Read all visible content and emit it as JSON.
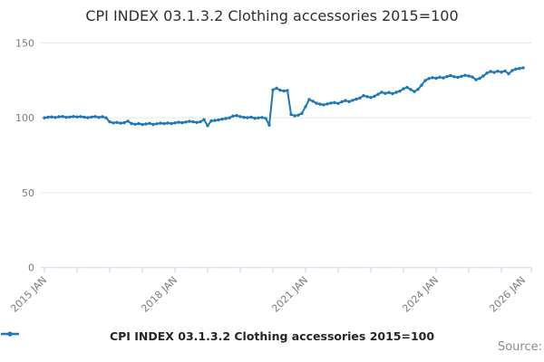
{
  "title": "CPI INDEX 03.1.3.2 Clothing accessories 2015=100",
  "legend": {
    "label": "CPI INDEX 03.1.3.2 Clothing accessories 2015=100"
  },
  "source_label": "Source:",
  "colors": {
    "line": "#1f77b4",
    "grid": "#e6e6e6",
    "axis": "#c9d6ea",
    "tick_label": "#7b7b7b"
  },
  "chart_data": {
    "type": "line",
    "title": "CPI INDEX 03.1.3.2 Clothing accessories 2015=100",
    "frequency": "monthly",
    "start": "2015 JAN",
    "end": "2026 JAN",
    "ylim": [
      0,
      155
    ],
    "yticks": [
      0,
      50,
      100,
      150
    ],
    "grid": "horizontal",
    "legend_position": "bottom",
    "xtick_labels": [
      "2015 JAN",
      "2018 JAN",
      "2021 JAN",
      "2024 JAN",
      "2026 JAN"
    ],
    "xtick_label_months": [
      0,
      36,
      72,
      108,
      132
    ],
    "minor_tick_interval_months": 9,
    "series": [
      {
        "name": "CPI INDEX 03.1.3.2 Clothing accessories 2015=100",
        "values": [
          100.0,
          100.4,
          100.6,
          100.2,
          100.7,
          100.9,
          100.3,
          100.5,
          100.9,
          100.6,
          100.8,
          100.4,
          100.1,
          100.5,
          100.8,
          100.3,
          100.7,
          100.0,
          97.3,
          96.6,
          96.9,
          96.4,
          96.7,
          97.8,
          96.2,
          95.7,
          96.1,
          95.5,
          95.9,
          96.3,
          95.6,
          96.0,
          96.4,
          96.1,
          96.5,
          96.2,
          96.6,
          97.0,
          96.7,
          97.2,
          97.6,
          97.3,
          96.9,
          97.4,
          98.8,
          94.7,
          97.9,
          98.2,
          98.6,
          99.1,
          99.5,
          100.0,
          101.2,
          101.5,
          100.8,
          100.3,
          100.1,
          100.4,
          99.7,
          99.9,
          100.2,
          99.6,
          95.1,
          118.6,
          119.8,
          118.4,
          117.9,
          118.3,
          102.2,
          101.3,
          101.8,
          103.0,
          107.4,
          112.2,
          111.1,
          109.7,
          109.1,
          108.7,
          109.3,
          109.8,
          110.2,
          109.6,
          110.7,
          111.5,
          110.8,
          111.7,
          112.5,
          113.3,
          114.8,
          114.1,
          113.5,
          114.4,
          115.7,
          117.1,
          116.3,
          116.9,
          116.1,
          117.0,
          117.8,
          119.4,
          120.3,
          118.9,
          117.5,
          119.0,
          121.8,
          124.9,
          126.2,
          126.8,
          126.4,
          127.1,
          126.6,
          127.5,
          128.2,
          127.4,
          127.0,
          127.7,
          128.4,
          127.9,
          127.2,
          125.4,
          126.3,
          127.9,
          129.8,
          130.9,
          130.3,
          131.1,
          130.5,
          131.3,
          129.4,
          131.6,
          132.6,
          132.9,
          133.4
        ]
      }
    ]
  }
}
